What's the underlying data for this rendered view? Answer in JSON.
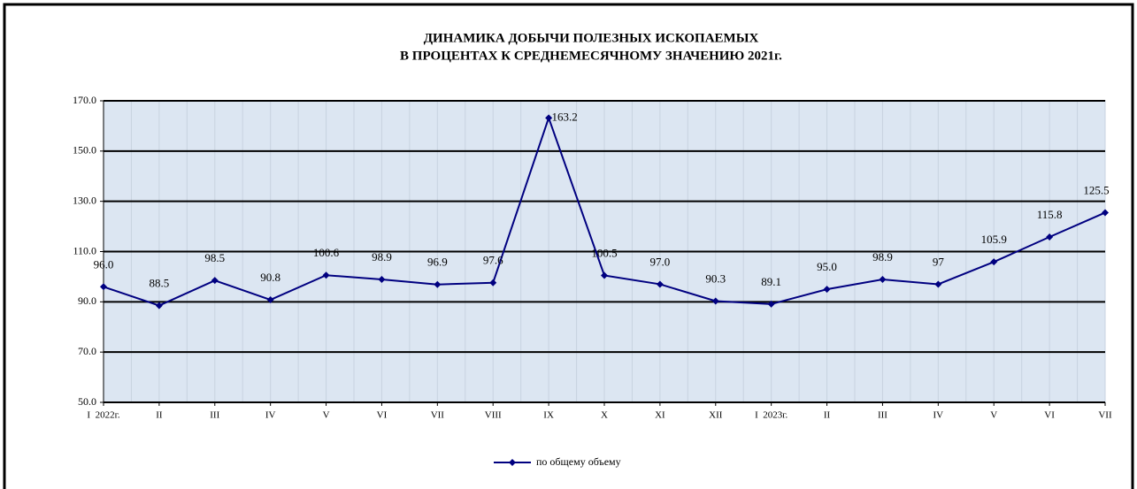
{
  "chart_data": {
    "type": "line",
    "title": "ДИНАМИКА ДОБЫЧИ ПОЛЕЗНЫХ ИСКОПАЕМЫХ",
    "subtitle": "В ПРОЦЕНТАХ К СРЕДНЕМЕСЯЧНОМУ ЗНАЧЕНИЮ 2021г.",
    "categories": [
      "I  2022г.",
      "II",
      "III",
      "IV",
      "V",
      "VI",
      "VII",
      "VIII",
      "IX",
      "X",
      "XI",
      "XII",
      "I  2023г.",
      "II",
      "III",
      "IV",
      "V",
      "VI",
      "VII"
    ],
    "series": [
      {
        "name": "по общему объему",
        "color": "#000080",
        "values": [
          96.0,
          88.5,
          98.5,
          90.8,
          100.6,
          98.9,
          96.9,
          97.6,
          163.2,
          100.5,
          97.0,
          90.3,
          89.1,
          95.0,
          98.9,
          97,
          105.9,
          115.8,
          125.5
        ],
        "value_labels": [
          "96.0",
          "88.5",
          "98.5",
          "90.8",
          "100.6",
          "98.9",
          "96.9",
          "97.6",
          "163.2",
          "100.5",
          "97.0",
          "90.3",
          "89.1",
          "95.0",
          "98.9",
          "97",
          "105.9",
          "115.8",
          "125.5"
        ]
      }
    ],
    "ylim": [
      50,
      170
    ],
    "yticks": [
      {
        "value": 50,
        "label": "50.0"
      },
      {
        "value": 70,
        "label": "70.0"
      },
      {
        "value": 90,
        "label": "90.0"
      },
      {
        "value": 110,
        "label": "110.0"
      },
      {
        "value": 130,
        "label": "130.0"
      },
      {
        "value": 150,
        "label": "150.0"
      },
      {
        "value": 170,
        "label": "170.0"
      }
    ],
    "grid": true,
    "legend": "bottom",
    "background": "#dce6f2"
  }
}
